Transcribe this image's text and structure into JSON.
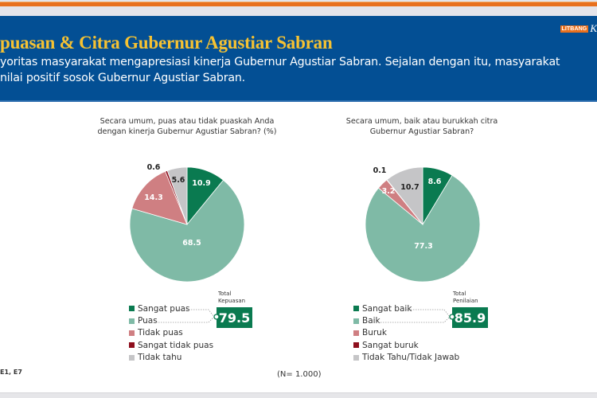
{
  "header": {
    "top_right_text": "",
    "brand_tag": "LITBANG",
    "brand_rest": "K",
    "title": "puasan & Citra Gubernur Agustiar Sabran",
    "subtitle_line1": "yoritas masyarakat mengapresiasi kinerja Gubernur Agustiar Sabran. Sejalan dengan itu, masyarakat",
    "subtitle_line2": "nilai positif sosok Gubernur Agustiar Sabran."
  },
  "charts": {
    "left": {
      "question_line1": "Secara umum, puas atau tidak puaskah Anda",
      "question_line2": "dengan kinerja Gubernur Agustiar Sabran? (%)",
      "total_label_line1": "Total",
      "total_label_line2": "Kepuasan",
      "total_value": "79.5",
      "legend": [
        "Sangat puas",
        "Puas",
        "Tidak puas",
        "Sangat tidak puas",
        "Tidak tahu"
      ]
    },
    "right": {
      "question_line1": "Secara umum, baik atau burukkah citra",
      "question_line2": "Gubernur Agustiar Sabran?",
      "total_label_line1": "Total",
      "total_label_line2": "Penilaian",
      "total_value": "85.9",
      "legend": [
        "Sangat baik",
        "Baik",
        "Buruk",
        "Sangat buruk",
        "Tidak Tahu/Tidak Jawab"
      ]
    }
  },
  "colors": {
    "dark_green": "#0a7a50",
    "light_green": "#7fbaa6",
    "pink": "#cf7f82",
    "dark_red": "#8e0f1d",
    "gray": "#c5c5c7",
    "header_blue": "#034f94",
    "title_yellow": "#f6c232",
    "accent_orange": "#e8701e"
  },
  "footer": {
    "source": "E1, E7",
    "n_note": "(N= 1.000)"
  },
  "chart_data": [
    {
      "type": "pie",
      "title": "Secara umum, puas atau tidak puaskah Anda dengan kinerja Gubernur Agustiar Sabran? (%)",
      "categories": [
        "Sangat puas",
        "Puas",
        "Tidak puas",
        "Sangat tidak puas",
        "Tidak tahu"
      ],
      "values": [
        10.9,
        68.5,
        14.3,
        0.6,
        5.6
      ],
      "colors": [
        "#0a7a50",
        "#7fbaa6",
        "#cf7f82",
        "#8e0f1d",
        "#c5c5c7"
      ],
      "annotation": {
        "label": "Total Kepuasan",
        "value": 79.5,
        "components": [
          "Sangat puas",
          "Puas"
        ]
      },
      "legend_position": "bottom-left"
    },
    {
      "type": "pie",
      "title": "Secara umum, baik atau burukkah citra Gubernur Agustiar Sabran?",
      "categories": [
        "Sangat baik",
        "Baik",
        "Buruk",
        "Sangat buruk",
        "Tidak Tahu/Tidak Jawab"
      ],
      "values": [
        8.6,
        77.3,
        3.2,
        0.1,
        10.7
      ],
      "colors": [
        "#0a7a50",
        "#7fbaa6",
        "#cf7f82",
        "#8e0f1d",
        "#c5c5c7"
      ],
      "annotation": {
        "label": "Total Penilaian",
        "value": 85.9,
        "components": [
          "Sangat baik",
          "Baik"
        ]
      },
      "legend_position": "bottom-left"
    }
  ]
}
